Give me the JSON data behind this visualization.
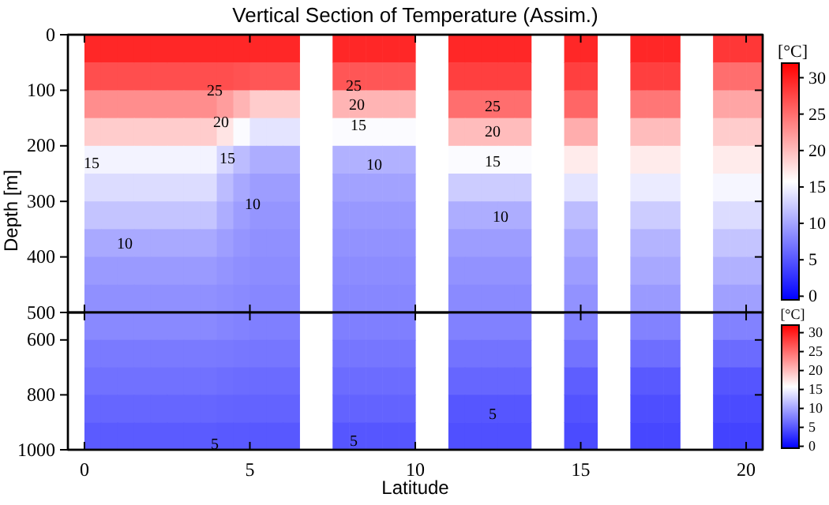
{
  "chart_data": [
    {
      "type": "heatmap",
      "title": "Vertical Section of Temperature (Assim.)",
      "ylabel": "Depth [m]",
      "clabel": "[°C]",
      "xlim": [
        -0.5,
        20.5
      ],
      "xticks": [
        0,
        5,
        10,
        15,
        20
      ],
      "ylim": [
        500,
        0
      ],
      "yticks": [
        0,
        100,
        200,
        300,
        400,
        500
      ],
      "tick_labels": "y",
      "clim": [
        -0.5,
        32
      ],
      "cticks": [
        0,
        5,
        10,
        15,
        20,
        25,
        30
      ],
      "cells": [
        [
          null,
          29.5,
          29.5,
          29.5,
          29.5,
          29.5,
          29.5,
          29.5,
          29.5,
          29.5,
          29.5,
          29.5,
          29.5,
          29.5,
          null,
          null,
          29.5,
          29.5,
          29.5,
          29.5,
          29.5,
          null,
          null,
          29.5,
          29.5,
          29.5,
          29.5,
          29.5,
          null,
          null,
          29.5,
          29.5,
          null,
          null,
          29.5,
          29.5,
          29.5,
          null,
          null,
          28.5,
          28.5,
          28.5
        ],
        [
          null,
          27,
          27,
          27,
          27,
          27,
          27,
          27,
          27,
          27,
          26.8,
          26.5,
          26.5,
          26.5,
          null,
          null,
          26.5,
          26.5,
          26.5,
          26.5,
          26.5,
          null,
          null,
          28,
          28,
          28,
          28,
          28,
          null,
          null,
          28,
          28,
          null,
          null,
          28,
          28,
          28,
          null,
          null,
          25,
          25,
          25
        ],
        [
          null,
          23,
          23,
          23,
          23,
          23,
          23,
          23,
          23,
          22,
          20.5,
          19,
          19,
          19,
          null,
          null,
          20.5,
          20.5,
          20.5,
          20.5,
          20.5,
          null,
          null,
          25,
          25,
          25,
          25,
          25,
          null,
          null,
          25.5,
          25.5,
          null,
          null,
          24.5,
          24.5,
          24.5,
          null,
          null,
          21.5,
          21.5,
          21.5
        ],
        [
          null,
          19,
          19,
          19,
          19,
          19,
          19,
          19,
          19,
          17.5,
          15.5,
          14,
          14,
          14,
          null,
          null,
          15.5,
          15.5,
          15.5,
          15.5,
          15.5,
          null,
          null,
          20,
          20,
          20,
          20,
          20,
          null,
          null,
          21,
          21,
          null,
          null,
          20,
          20,
          20,
          null,
          null,
          19,
          19,
          19
        ],
        [
          null,
          15,
          15,
          15,
          15,
          15,
          15,
          15,
          15,
          13,
          11.5,
          10.5,
          10.5,
          10.5,
          null,
          null,
          10.8,
          10.8,
          10.8,
          10.8,
          10.8,
          null,
          null,
          15.5,
          15.5,
          15.5,
          15.5,
          15.5,
          null,
          null,
          17,
          17,
          null,
          null,
          17,
          17,
          17,
          null,
          null,
          17,
          17,
          17
        ],
        [
          null,
          13.5,
          13.5,
          13.5,
          13.5,
          13.5,
          13.5,
          13.5,
          13.5,
          11.5,
          10.2,
          9.5,
          9.5,
          9.5,
          null,
          null,
          9.8,
          9.8,
          9.8,
          9.8,
          9.8,
          null,
          null,
          12.5,
          12.5,
          12.5,
          12.5,
          12.5,
          null,
          null,
          14,
          14,
          null,
          null,
          14.5,
          14.5,
          14.5,
          null,
          null,
          15.2,
          15.2,
          15.2
        ],
        [
          null,
          12,
          12,
          12,
          12,
          12,
          12,
          12,
          12,
          10.5,
          9.5,
          9,
          9,
          9,
          null,
          null,
          9.2,
          9.2,
          9.2,
          9.2,
          9.2,
          null,
          null,
          10.5,
          10.5,
          10.5,
          10.5,
          10.5,
          null,
          null,
          11.5,
          11.5,
          null,
          null,
          12.5,
          12.5,
          12.5,
          null,
          null,
          13.5,
          13.5,
          13.5
        ],
        [
          null,
          10.3,
          10.3,
          10.3,
          10.3,
          10.3,
          10.3,
          10.3,
          10.3,
          9.6,
          9,
          8.7,
          8.7,
          8.7,
          null,
          null,
          8.8,
          8.8,
          8.8,
          8.8,
          8.8,
          null,
          null,
          9.5,
          9.5,
          9.5,
          9.5,
          9.5,
          null,
          null,
          10.3,
          10.3,
          null,
          null,
          11,
          11,
          11,
          null,
          null,
          12,
          12,
          12
        ],
        [
          null,
          9.3,
          9.3,
          9.3,
          9.3,
          9.3,
          9.3,
          9.3,
          9.3,
          8.9,
          8.6,
          8.4,
          8.4,
          8.4,
          null,
          null,
          8.4,
          8.4,
          8.4,
          8.4,
          8.4,
          null,
          null,
          8.8,
          8.8,
          8.8,
          8.8,
          8.8,
          null,
          null,
          9.5,
          9.5,
          null,
          null,
          10.2,
          10.2,
          10.2,
          null,
          null,
          10.8,
          10.8,
          10.8
        ],
        [
          null,
          8.7,
          8.7,
          8.7,
          8.7,
          8.7,
          8.7,
          8.7,
          8.7,
          8.5,
          8.3,
          8.1,
          8.1,
          8.1,
          null,
          null,
          8.1,
          8.1,
          8.1,
          8.1,
          8.1,
          null,
          null,
          8.3,
          8.3,
          8.3,
          8.3,
          8.3,
          null,
          null,
          8.8,
          8.8,
          null,
          null,
          9.3,
          9.3,
          9.3,
          null,
          null,
          9.7,
          9.7,
          9.7
        ]
      ],
      "annotations": [
        "25",
        "20",
        "15",
        "15",
        "10",
        "10",
        "25",
        "20",
        "15",
        "10",
        "25",
        "20",
        "15",
        "10"
      ]
    },
    {
      "type": "heatmap",
      "xlabel": "Latitude",
      "clabel": "[°C]",
      "xlim": [
        -0.5,
        20.5
      ],
      "xticks": [
        0,
        5,
        10,
        15,
        20
      ],
      "ylim": [
        1000,
        500
      ],
      "yticks": [
        600,
        800,
        1000
      ],
      "clim": [
        -0.5,
        32
      ],
      "cticks": [
        0,
        5,
        10,
        15,
        20,
        25,
        30
      ],
      "cells": [
        [
          null,
          8.2,
          8.2,
          8.2,
          8.2,
          8.2,
          8.2,
          8.2,
          8.2,
          8,
          7.8,
          7.6,
          7.6,
          7.6,
          null,
          null,
          7.6,
          7.6,
          7.6,
          7.6,
          7.6,
          null,
          null,
          7.7,
          7.7,
          7.7,
          7.7,
          7.7,
          null,
          null,
          7.8,
          7.8,
          null,
          null,
          7.8,
          7.8,
          7.8,
          null,
          null,
          7.8,
          7.8,
          7.8
        ],
        [
          null,
          7.3,
          7.3,
          7.3,
          7.3,
          7.3,
          7.3,
          7.3,
          7.3,
          7.2,
          7.1,
          7,
          7,
          7,
          null,
          null,
          7,
          7,
          7,
          7,
          7,
          null,
          null,
          6.8,
          6.8,
          6.8,
          6.8,
          6.8,
          null,
          null,
          6.8,
          6.8,
          null,
          null,
          6.5,
          6.5,
          6.5,
          null,
          null,
          6.3,
          6.3,
          6.3
        ],
        [
          null,
          6.7,
          6.7,
          6.7,
          6.7,
          6.7,
          6.7,
          6.7,
          6.7,
          6.5,
          6.4,
          6.3,
          6.3,
          6.3,
          null,
          null,
          6.4,
          6.4,
          6.4,
          6.4,
          6.4,
          null,
          null,
          6,
          6,
          6,
          6,
          6,
          null,
          null,
          5.5,
          5.5,
          null,
          null,
          5.2,
          5.2,
          5.2,
          null,
          null,
          4.9,
          4.9,
          4.9
        ],
        [
          null,
          6,
          6,
          6,
          6,
          6,
          6,
          6,
          6,
          5.9,
          5.8,
          5.8,
          5.8,
          5.8,
          null,
          null,
          5.8,
          5.8,
          5.8,
          5.8,
          5.8,
          null,
          null,
          5,
          5,
          5,
          5,
          5,
          null,
          null,
          4.8,
          4.8,
          null,
          null,
          4.5,
          4.5,
          4.5,
          null,
          null,
          4.3,
          4.3,
          4.3
        ],
        [
          null,
          5.3,
          5.3,
          5.3,
          5.3,
          5.3,
          5.3,
          5.3,
          5.3,
          5.2,
          5.2,
          5.1,
          5.1,
          5.1,
          null,
          null,
          5,
          5,
          5,
          5,
          5,
          null,
          null,
          4.6,
          4.6,
          4.6,
          4.6,
          4.6,
          null,
          null,
          4.3,
          4.3,
          null,
          null,
          4,
          4,
          4,
          null,
          null,
          3.8,
          3.8,
          3.8
        ]
      ],
      "annotations": [
        "5",
        "5",
        "5"
      ]
    }
  ]
}
